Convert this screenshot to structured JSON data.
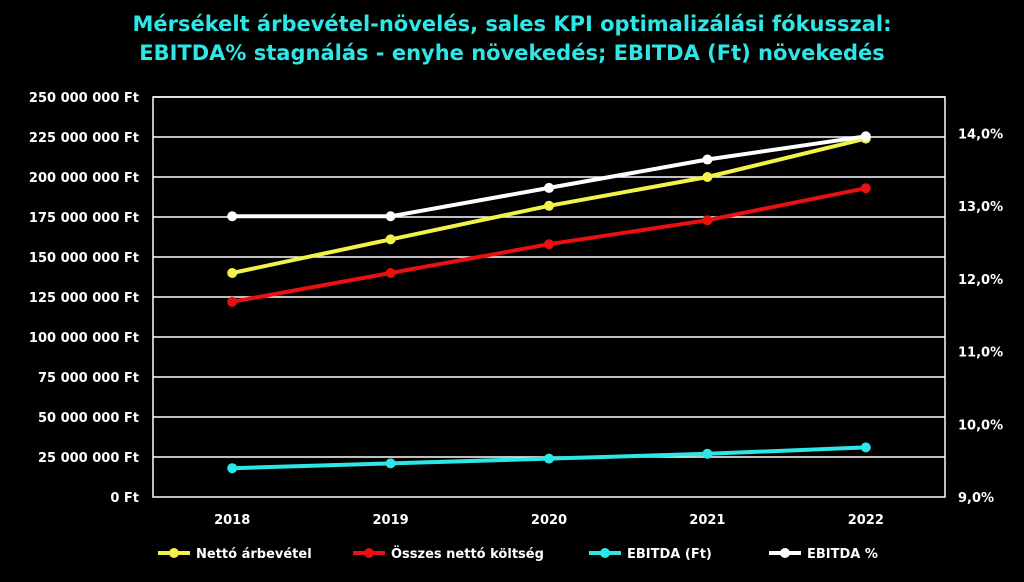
{
  "chart_data": {
    "type": "line",
    "title": "Mérsékelt árbevétel-növelés, sales KPI optimalizálási fókusszal:",
    "subtitle": "EBITDA% stagnálás - enyhe növekedés; EBITDA (Ft) növekedés",
    "categories": [
      "2018",
      "2019",
      "2020",
      "2021",
      "2022"
    ],
    "y_left": {
      "min": 0,
      "max": 250000000,
      "step": 25000000,
      "ticks": [
        "0 Ft",
        "25 000 000 Ft",
        "50 000 000 Ft",
        "75 000 000 Ft",
        "100 000 000 Ft",
        "125 000 000 Ft",
        "150 000 000 Ft",
        "175 000 000 Ft",
        "200 000 000 Ft",
        "225 000 000 Ft",
        "250 000 000 Ft"
      ]
    },
    "y_right": {
      "min": 9.0,
      "max": 14.5,
      "tick_values": [
        9.0,
        10.0,
        11.0,
        12.0,
        13.0,
        14.0
      ],
      "ticks": [
        "9,0%",
        "10,0%",
        "11,0%",
        "12,0%",
        "13,0%",
        "14,0%"
      ]
    },
    "grid": true,
    "legend_position": "bottom",
    "series": [
      {
        "name": "Nettó árbevétel",
        "color": "#f2f24a",
        "axis": "left",
        "values": [
          140000000,
          161000000,
          182000000,
          200000000,
          224000000
        ]
      },
      {
        "name": "Összes nettó költség",
        "color": "#e81010",
        "axis": "left",
        "values": [
          122000000,
          140000000,
          158000000,
          173000000,
          193000000
        ]
      },
      {
        "name": "EBITDA (Ft)",
        "color": "#2fe6e6",
        "axis": "left",
        "values": [
          18000000,
          21000000,
          24000000,
          27000000,
          31000000
        ]
      },
      {
        "name": "EBITDA %",
        "color": "#ffffff",
        "axis": "right",
        "values": [
          12.86,
          12.86,
          13.25,
          13.64,
          13.96
        ]
      }
    ]
  }
}
